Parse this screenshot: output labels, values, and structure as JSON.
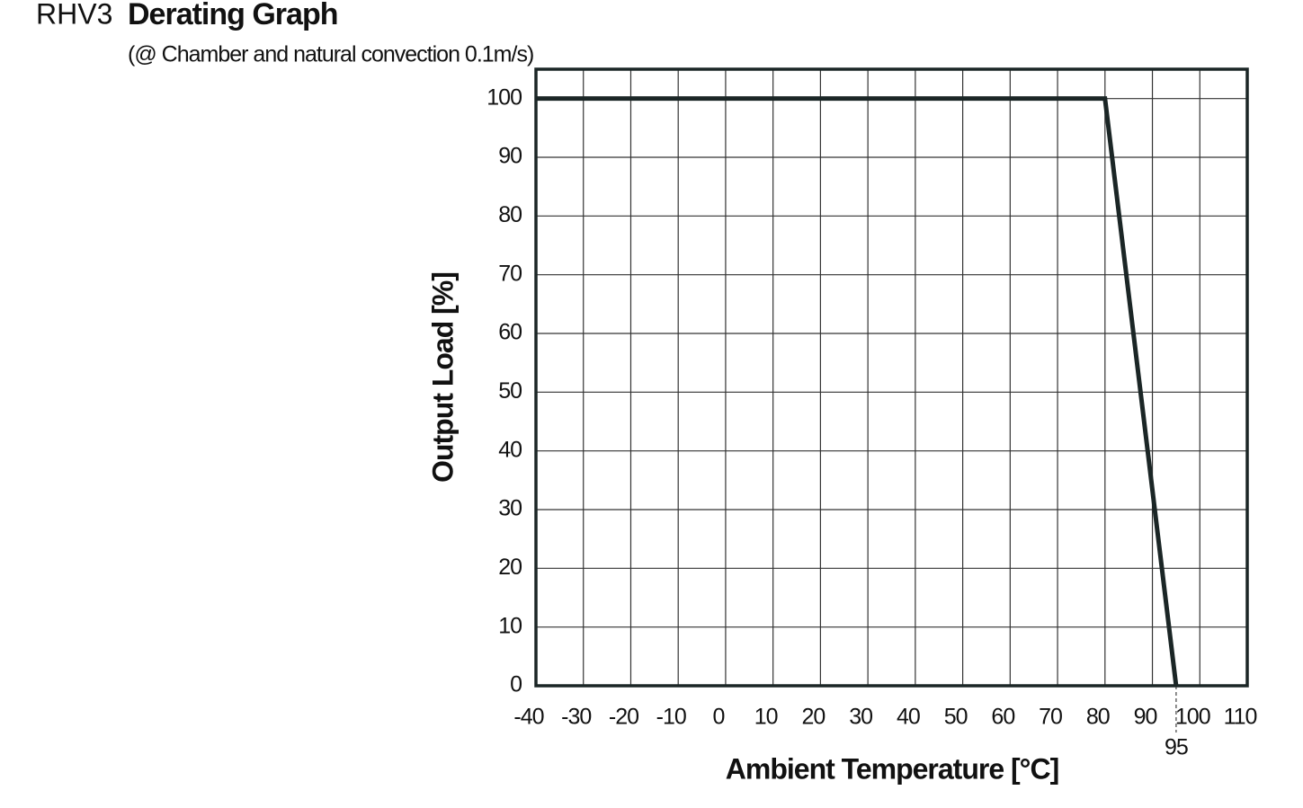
{
  "chart_data": {
    "type": "line",
    "model": "RHV3",
    "title": "Derating Graph",
    "subtitle": "(@ Chamber and natural convection 0.1m/s)",
    "x_label": "Ambient Temperature [°C]",
    "y_label": "Output Load [%]",
    "x": [
      -40,
      80,
      95
    ],
    "series": [
      {
        "color": "#1b2626",
        "values": [
          100,
          100,
          0
        ]
      }
    ],
    "xlim": [
      -40,
      110
    ],
    "xticks": [
      -40,
      -30,
      -20,
      -10,
      0,
      10,
      20,
      30,
      40,
      50,
      60,
      70,
      80,
      90,
      100,
      110
    ],
    "ylim": [
      0,
      105
    ],
    "yticks": [
      0,
      10,
      20,
      30,
      40,
      50,
      60,
      70,
      80,
      90,
      100
    ],
    "x_markers": [
      95
    ],
    "grid": true
  }
}
